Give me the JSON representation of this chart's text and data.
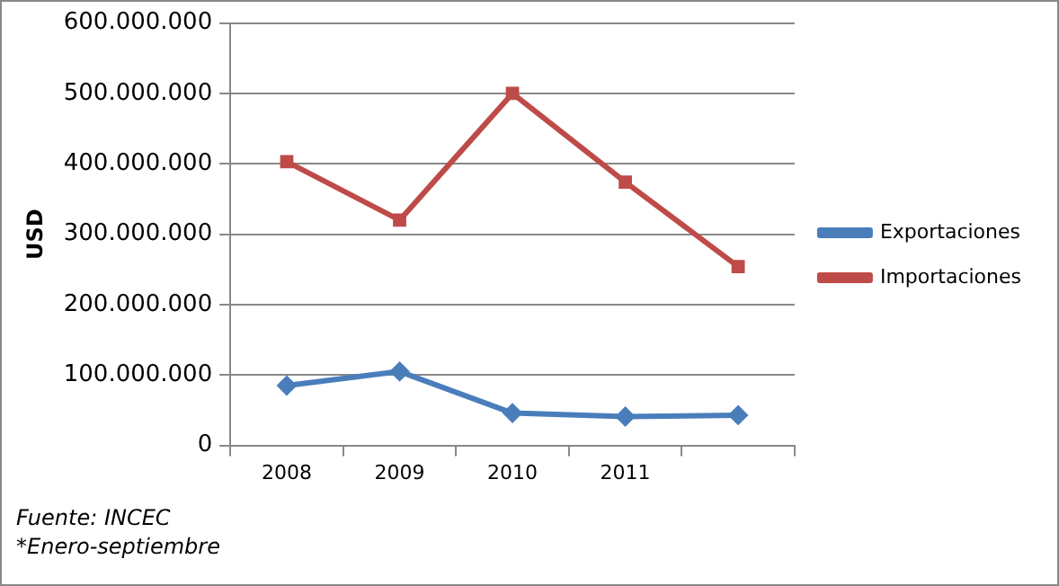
{
  "chart_data": {
    "type": "line",
    "ylabel": "USD",
    "categories": [
      "2008",
      "2009",
      "2010",
      "2011",
      null
    ],
    "series": [
      {
        "name": "Exportaciones",
        "color": "#4a7ebb",
        "marker": "diamond",
        "values": [
          85000000,
          105000000,
          46000000,
          41000000,
          43000000
        ]
      },
      {
        "name": "Importaciones",
        "color": "#be4b48",
        "marker": "square",
        "values": [
          403000000,
          320000000,
          500000000,
          374000000,
          254000000
        ]
      }
    ],
    "ylim": [
      0,
      600000000
    ],
    "yticks": [
      0,
      {
        "value": 100000000,
        "label": "100.000.000"
      },
      {
        "value": 200000000,
        "label": "200.000.000"
      },
      {
        "value": 300000000,
        "label": "300.000.000"
      },
      {
        "value": 400000000,
        "label": "400.000.000"
      },
      {
        "value": 500000000,
        "label": "500.000.000"
      },
      {
        "value": 600000000,
        "label": "600.000.000"
      }
    ],
    "grid": "y",
    "legend": "right",
    "line_style": "solid",
    "annotations": [
      "Fuente: INCEC",
      "*Enero-septiembre"
    ]
  }
}
